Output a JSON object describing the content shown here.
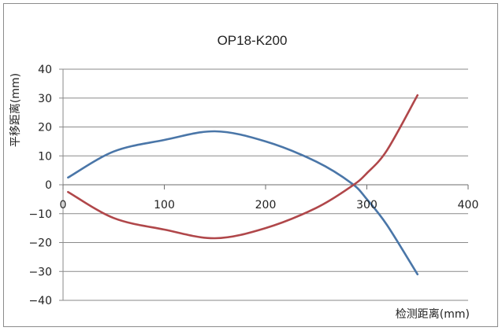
{
  "chart_data": {
    "type": "line",
    "title": "OP18-K200",
    "xlabel": "检测距离(mm)",
    "ylabel": "平移距离(mm)",
    "xlim": [
      0,
      400
    ],
    "ylim": [
      -40,
      40
    ],
    "xticks": [
      "0",
      "100",
      "200",
      "300",
      "400"
    ],
    "yticks": [
      "40",
      "30",
      "20",
      "10",
      "0",
      "−10",
      "−20",
      "−30",
      "−40"
    ],
    "grid": "horizontal",
    "legend": "none",
    "series": [
      {
        "color": "#4a76a8",
        "x": [
          5,
          50,
          100,
          150,
          200,
          250,
          285,
          300,
          320,
          350
        ],
        "y": [
          2.5,
          11.5,
          15.5,
          18.5,
          15,
          8,
          0.5,
          -5,
          -14,
          -31
        ]
      },
      {
        "color": "#b0474a",
        "x": [
          5,
          50,
          100,
          150,
          200,
          250,
          285,
          300,
          320,
          350
        ],
        "y": [
          -2.5,
          -11.5,
          -15.5,
          -18.5,
          -15,
          -8,
          -0.5,
          4,
          12,
          31
        ]
      }
    ]
  }
}
